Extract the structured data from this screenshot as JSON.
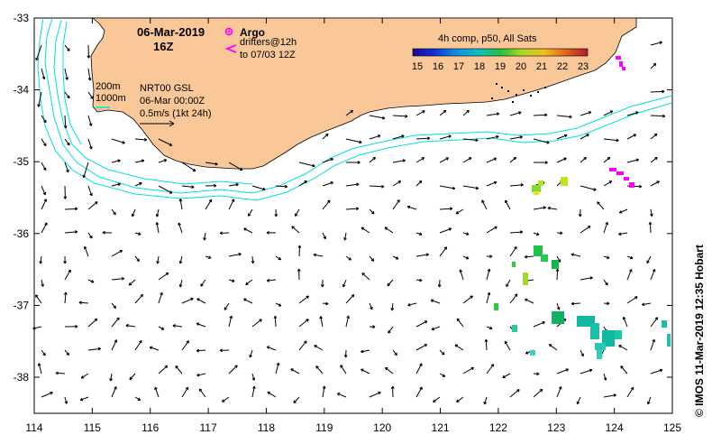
{
  "header": {
    "date": "06-Mar-2019",
    "hour": "16Z"
  },
  "legend": {
    "argo_label": "Argo",
    "drifters_line1": "drifters@12h",
    "drifters_line2": "to 07/03 12Z",
    "depth_200": "200m",
    "depth_1000": "1000m",
    "product_line1": "NRT00 GSL",
    "product_line2": "06-Mar 00:00Z",
    "scale_label": "0.5m/s (1kt 24h)",
    "colorbar_title": "4h comp, p50, All Sats",
    "colorbar_ticks": [
      "15",
      "16",
      "17",
      "18",
      "19",
      "20",
      "21",
      "22",
      "23"
    ]
  },
  "credit": "© IMOS 11-Mar-2019 12:35 Hobart",
  "axes": {
    "x_ticks": [
      "114",
      "115",
      "116",
      "117",
      "118",
      "119",
      "120",
      "121",
      "122",
      "123",
      "124",
      "125"
    ],
    "y_ticks": [
      "-33",
      "-34",
      "-35",
      "-36",
      "-37",
      "-38"
    ]
  },
  "colors": {
    "land": "#f9c798",
    "isobath": "#00e0e0",
    "argo": "#ff00ff",
    "sst_low": "#1a0a8c",
    "sst_high": "#b2182b"
  }
}
